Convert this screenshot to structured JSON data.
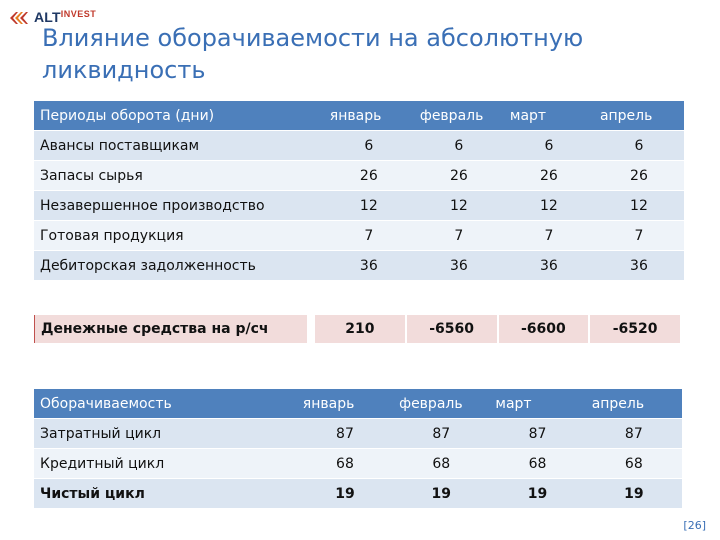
{
  "logo": {
    "main": "ALT",
    "sub": "INVEST"
  },
  "title": "Влияние оборачиваемости на абсолютную ликвидность",
  "table1": {
    "headers": [
      "Периоды оборота (дни)",
      "январь",
      "февраль",
      "март",
      "апрель"
    ],
    "rows": [
      [
        "Авансы поставщикам",
        "6",
        "6",
        "6",
        "6"
      ],
      [
        "Запасы сырья",
        "26",
        "26",
        "26",
        "26"
      ],
      [
        "Незавершенное производство",
        "12",
        "12",
        "12",
        "12"
      ],
      [
        "Готовая продукция",
        "7",
        "7",
        "7",
        "7"
      ],
      [
        "Дебиторская задолженность",
        "36",
        "36",
        "36",
        "36"
      ]
    ]
  },
  "cash": {
    "label": "Денежные средства на р/сч",
    "values": [
      "210",
      "-6560",
      "-6600",
      "-6520"
    ]
  },
  "table2": {
    "headers": [
      "Оборачиваемость",
      "январь",
      "февраль",
      "март",
      "апрель"
    ],
    "rows": [
      [
        "Затратный цикл",
        "87",
        "87",
        "87",
        "87"
      ],
      [
        "Кредитный цикл",
        "68",
        "68",
        "68",
        "68"
      ],
      [
        "Чистый цикл",
        "19",
        "19",
        "19",
        "19"
      ]
    ]
  },
  "page_number": "[26]",
  "colors": {
    "header": "#4f81bd",
    "row_odd": "#dbe5f1",
    "row_even": "#eef3f9",
    "cash_bg": "#f2dcdb",
    "title": "#3a6fb5"
  }
}
